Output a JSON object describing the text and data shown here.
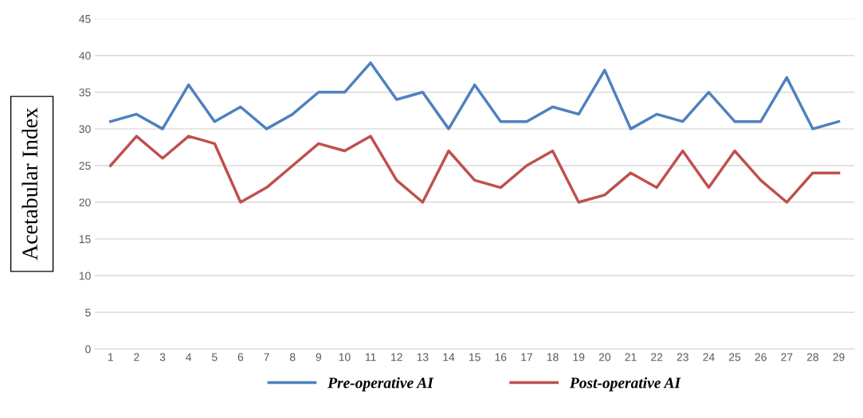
{
  "chart_data": {
    "type": "line",
    "ylabel": "Acetabular Index",
    "categories": [
      "1",
      "2",
      "3",
      "4",
      "5",
      "6",
      "7",
      "8",
      "9",
      "10",
      "11",
      "12",
      "13",
      "14",
      "15",
      "16",
      "17",
      "18",
      "19",
      "20",
      "21",
      "22",
      "23",
      "24",
      "25",
      "26",
      "27",
      "28",
      "29"
    ],
    "series": [
      {
        "name": "Pre-operative AI",
        "color": "#4f81bd",
        "values": [
          31,
          32,
          30,
          36,
          31,
          33,
          30,
          32,
          35,
          35,
          39,
          34,
          35,
          30,
          36,
          31,
          31,
          33,
          32,
          38,
          30,
          32,
          31,
          35,
          31,
          31,
          37,
          30,
          31
        ]
      },
      {
        "name": "Post-operative AI",
        "color": "#c0504d",
        "values": [
          25,
          29,
          26,
          29,
          28,
          20,
          22,
          25,
          28,
          27,
          29,
          23,
          20,
          27,
          23,
          22,
          25,
          27,
          20,
          21,
          24,
          22,
          27,
          22,
          27,
          23,
          20,
          24,
          24
        ]
      }
    ],
    "ylim": [
      0,
      45
    ],
    "yticks": [
      0,
      5,
      10,
      15,
      20,
      25,
      30,
      35,
      40,
      45
    ],
    "grid": "y",
    "legend": "bottom",
    "marker": "none",
    "line_style": "solid"
  }
}
